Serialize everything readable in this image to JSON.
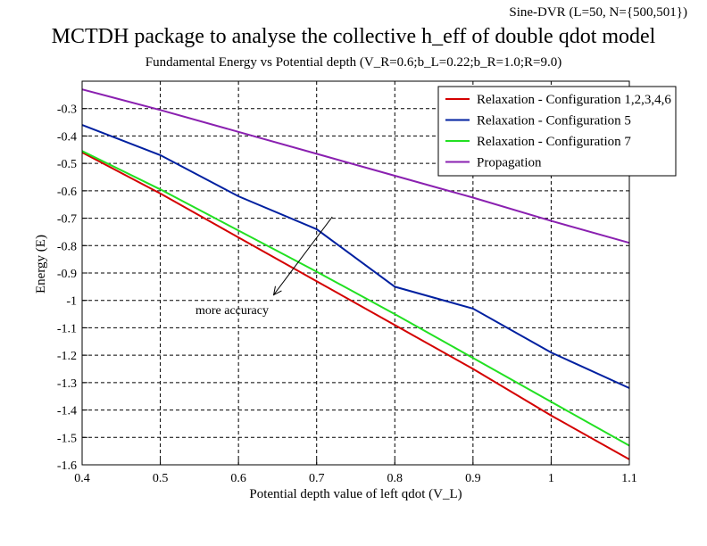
{
  "header": {
    "corner_note": "Sine-DVR (L=50, N={500,501})",
    "title": "MCTDH package to analyse the collective h_eff of double qdot model",
    "subtitle": "Fundamental Energy vs Potential depth (V_R=0.6;b_L=0.22;b_R=1.0;R=9.0)"
  },
  "chart_data": {
    "type": "line",
    "xlabel": "Potential depth value of left qdot (V_L)",
    "ylabel": "Energy (E)",
    "xlim": [
      0.4,
      1.1
    ],
    "ylim": [
      -1.6,
      -0.2
    ],
    "x_ticks": [
      0.4,
      0.5,
      0.6,
      0.7,
      0.8,
      0.9,
      1,
      1.1
    ],
    "x_tick_labels": [
      "0.4",
      "0.5",
      "0.6",
      "0.7",
      "0.8",
      "0.9",
      "1",
      "1.1"
    ],
    "y_ticks": [
      -0.3,
      -0.4,
      -0.5,
      -0.6,
      -0.7,
      -0.8,
      -0.9,
      -1,
      -1.1,
      -1.2,
      -1.3,
      -1.4,
      -1.5,
      -1.6
    ],
    "y_tick_labels": [
      "-0.3",
      "-0.4",
      "-0.5",
      "-0.6",
      "-0.7",
      "-0.8",
      "-0.9",
      "-1",
      "-1.1",
      "-1.2",
      "-1.3",
      "-1.4",
      "-1.5",
      "-1.6"
    ],
    "grid": true,
    "legend_position": "top-right",
    "series": [
      {
        "name": "Relaxation - Configuration 1,2,3,4,6",
        "color": "#d40000",
        "x": [
          0.4,
          0.5,
          0.6,
          0.7,
          0.8,
          0.9,
          1.0,
          1.1
        ],
        "y": [
          -0.46,
          -0.61,
          -0.77,
          -0.93,
          -1.09,
          -1.25,
          -1.42,
          -1.58
        ]
      },
      {
        "name": "Relaxation - Configuration 5",
        "color": "#0020a0",
        "x": [
          0.4,
          0.5,
          0.6,
          0.7,
          0.8,
          0.9,
          1.0,
          1.1
        ],
        "y": [
          -0.36,
          -0.47,
          -0.62,
          -0.74,
          -0.95,
          -1.03,
          -1.19,
          -1.32
        ]
      },
      {
        "name": "Relaxation - Configuration 7",
        "color": "#22e022",
        "x": [
          0.4,
          0.5,
          0.6,
          0.7,
          0.8,
          0.9,
          1.0,
          1.1
        ],
        "y": [
          -0.455,
          -0.595,
          -0.745,
          -0.895,
          -1.05,
          -1.21,
          -1.37,
          -1.53
        ]
      },
      {
        "name": "Propagation",
        "color": "#8a20b0",
        "x": [
          0.4,
          0.5,
          0.6,
          0.7,
          0.8,
          0.9,
          1.0,
          1.1
        ],
        "y": [
          -0.23,
          -0.305,
          -0.385,
          -0.465,
          -0.545,
          -0.625,
          -0.71,
          -0.79
        ]
      }
    ],
    "annotations": [
      {
        "text": "more accuracy",
        "x": 0.545,
        "y": -1.05,
        "arrow_from": [
          0.72,
          -0.695
        ],
        "arrow_to": [
          0.645,
          -0.98
        ]
      }
    ]
  }
}
